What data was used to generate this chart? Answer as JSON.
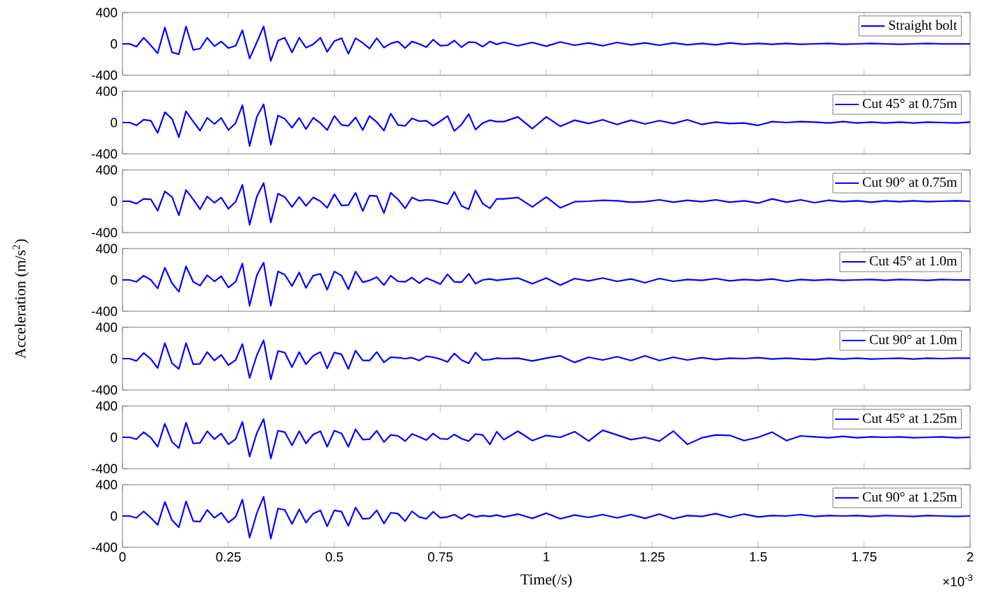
{
  "chart_data": [
    {
      "type": "line",
      "x": [
        0,
        0.017,
        0.033,
        0.05,
        0.067,
        0.083,
        0.1,
        0.117,
        0.133,
        0.15,
        0.167,
        0.183,
        0.2,
        0.217,
        0.233,
        0.25,
        0.267,
        0.283,
        0.3,
        0.317,
        0.333,
        0.35,
        0.367,
        0.383,
        0.4,
        0.417,
        0.433,
        0.45,
        0.467,
        0.483,
        0.5,
        0.517,
        0.533,
        0.55,
        0.567,
        0.583,
        0.6,
        0.617,
        0.633,
        0.65,
        0.667,
        0.683,
        0.7,
        0.717,
        0.733,
        0.75,
        0.767,
        0.783,
        0.8,
        0.817,
        0.833,
        0.85,
        0.867,
        0.883,
        0.9,
        0.933,
        0.967,
        1,
        1.033,
        1.067,
        1.1,
        1.133,
        1.167,
        1.2,
        1.233,
        1.267,
        1.3,
        1.333,
        1.367,
        1.4,
        1.433,
        1.467,
        1.5,
        1.533,
        1.567,
        1.6,
        1.633,
        1.667,
        1.7,
        1.733,
        1.767,
        1.8,
        1.833,
        1.867,
        1.9,
        1.933,
        1.967,
        2
      ],
      "xlim": [
        0,
        2
      ],
      "xticks": [
        0,
        0.25,
        0.5,
        0.75,
        1,
        1.25,
        1.5,
        1.75,
        2
      ],
      "ylim": [
        -400,
        400
      ],
      "yticks": [
        -400,
        0,
        400
      ],
      "tick_labels": "y",
      "legend": "top right",
      "marker": "none",
      "line_style": "solid",
      "series": [
        {
          "name": "Straight bolt",
          "color": "#0000ff",
          "values": [
            0,
            0,
            -36,
            78,
            -20,
            -120,
            210,
            -108,
            -132,
            222,
            -78,
            -60,
            78,
            -30,
            30,
            -54,
            -24,
            174,
            -186,
            20,
            222,
            -216,
            42,
            78,
            -108,
            78,
            -48,
            -6,
            78,
            -102,
            36,
            72,
            -126,
            72,
            12,
            -60,
            72,
            -48,
            6,
            30,
            -54,
            30,
            0,
            -42,
            54,
            -24,
            -18,
            42,
            -42,
            24,
            18,
            -36,
            30,
            -6,
            20,
            -24,
            18,
            -30,
            24,
            -18,
            12,
            -24,
            18,
            -12,
            12,
            -18,
            12,
            -12,
            6,
            -12,
            12,
            -6,
            6,
            -6,
            6,
            -6,
            0,
            6,
            -6,
            0,
            6,
            0,
            -6,
            0,
            6,
            0,
            0,
            0
          ]
        }
      ]
    },
    {
      "type": "line",
      "x": [
        0,
        0.017,
        0.033,
        0.05,
        0.067,
        0.083,
        0.1,
        0.117,
        0.133,
        0.15,
        0.167,
        0.183,
        0.2,
        0.217,
        0.233,
        0.25,
        0.267,
        0.283,
        0.3,
        0.317,
        0.333,
        0.35,
        0.367,
        0.383,
        0.4,
        0.417,
        0.433,
        0.45,
        0.467,
        0.483,
        0.5,
        0.517,
        0.533,
        0.55,
        0.567,
        0.583,
        0.6,
        0.617,
        0.633,
        0.65,
        0.667,
        0.683,
        0.7,
        0.717,
        0.733,
        0.75,
        0.767,
        0.783,
        0.8,
        0.817,
        0.833,
        0.85,
        0.867,
        0.883,
        0.9,
        0.933,
        0.967,
        1,
        1.033,
        1.067,
        1.1,
        1.133,
        1.167,
        1.2,
        1.233,
        1.267,
        1.3,
        1.333,
        1.367,
        1.4,
        1.433,
        1.467,
        1.5,
        1.533,
        1.567,
        1.6,
        1.633,
        1.667,
        1.7,
        1.733,
        1.767,
        1.8,
        1.833,
        1.867,
        1.9,
        1.933,
        1.967,
        2
      ],
      "xlim": [
        0,
        2
      ],
      "xticks": [
        0,
        0.25,
        0.5,
        0.75,
        1,
        1.25,
        1.5,
        1.75,
        2
      ],
      "ylim": [
        -400,
        400
      ],
      "yticks": [
        -400,
        0,
        400
      ],
      "tick_labels": "y",
      "legend": "top right",
      "marker": "none",
      "line_style": "solid",
      "series": [
        {
          "name": "Cut 45° at 0.75m",
          "color": "#0000ff",
          "values": [
            0,
            0,
            -36,
            36,
            24,
            -132,
            132,
            48,
            -186,
            144,
            12,
            -102,
            60,
            -18,
            60,
            -96,
            -6,
            222,
            -300,
            72,
            234,
            -282,
            90,
            48,
            -66,
            60,
            -84,
            60,
            -6,
            -96,
            84,
            -30,
            -42,
            66,
            -96,
            84,
            6,
            -102,
            114,
            -30,
            -42,
            54,
            18,
            24,
            -42,
            18,
            84,
            -108,
            -24,
            108,
            -90,
            -6,
            30,
            12,
            12,
            72,
            -78,
            72,
            -48,
            30,
            -12,
            36,
            -24,
            30,
            -18,
            24,
            -12,
            36,
            -24,
            6,
            -12,
            -6,
            -36,
            12,
            0,
            12,
            6,
            -6,
            12,
            -6,
            6,
            -6,
            6,
            -6,
            6,
            0,
            -6,
            6
          ]
        }
      ]
    },
    {
      "type": "line",
      "x": [
        0,
        0.017,
        0.033,
        0.05,
        0.067,
        0.083,
        0.1,
        0.117,
        0.133,
        0.15,
        0.167,
        0.183,
        0.2,
        0.217,
        0.233,
        0.25,
        0.267,
        0.283,
        0.3,
        0.317,
        0.333,
        0.35,
        0.367,
        0.383,
        0.4,
        0.417,
        0.433,
        0.45,
        0.467,
        0.483,
        0.5,
        0.517,
        0.533,
        0.55,
        0.567,
        0.583,
        0.6,
        0.617,
        0.633,
        0.65,
        0.667,
        0.683,
        0.7,
        0.717,
        0.733,
        0.75,
        0.767,
        0.783,
        0.8,
        0.817,
        0.833,
        0.85,
        0.867,
        0.883,
        0.9,
        0.933,
        0.967,
        1,
        1.033,
        1.067,
        1.1,
        1.133,
        1.167,
        1.2,
        1.233,
        1.267,
        1.3,
        1.333,
        1.367,
        1.4,
        1.433,
        1.467,
        1.5,
        1.533,
        1.567,
        1.6,
        1.633,
        1.667,
        1.7,
        1.733,
        1.767,
        1.8,
        1.833,
        1.867,
        1.9,
        1.933,
        1.967,
        2
      ],
      "xlim": [
        0,
        2
      ],
      "xticks": [
        0,
        0.25,
        0.5,
        0.75,
        1,
        1.25,
        1.5,
        1.75,
        2
      ],
      "ylim": [
        -400,
        400
      ],
      "yticks": [
        -400,
        0,
        400
      ],
      "tick_labels": "y",
      "legend": "top right",
      "marker": "none",
      "line_style": "solid",
      "series": [
        {
          "name": "Cut 90° at 0.75m",
          "color": "#0000ff",
          "values": [
            0,
            0,
            -30,
            30,
            24,
            -120,
            126,
            54,
            -180,
            144,
            24,
            -102,
            60,
            -18,
            48,
            -96,
            -6,
            210,
            -300,
            60,
            234,
            -270,
            96,
            54,
            -72,
            54,
            -60,
            48,
            0,
            -84,
            90,
            -54,
            -48,
            108,
            -126,
            72,
            66,
            -150,
            108,
            24,
            -90,
            48,
            6,
            18,
            12,
            -12,
            -36,
            120,
            -60,
            -102,
            138,
            -30,
            -90,
            30,
            30,
            48,
            -72,
            54,
            -84,
            -6,
            0,
            12,
            6,
            -12,
            -6,
            18,
            -12,
            12,
            -6,
            18,
            -12,
            6,
            -24,
            30,
            -12,
            18,
            -18,
            12,
            -6,
            6,
            -12,
            6,
            -6,
            6,
            -6,
            0,
            6,
            0
          ]
        }
      ]
    },
    {
      "type": "line",
      "ylabel": "Acceleration (m/s$^{2}$)",
      "x": [
        0,
        0.017,
        0.033,
        0.05,
        0.067,
        0.083,
        0.1,
        0.117,
        0.133,
        0.15,
        0.167,
        0.183,
        0.2,
        0.217,
        0.233,
        0.25,
        0.267,
        0.283,
        0.3,
        0.317,
        0.333,
        0.35,
        0.367,
        0.383,
        0.4,
        0.417,
        0.433,
        0.45,
        0.467,
        0.483,
        0.5,
        0.517,
        0.533,
        0.55,
        0.567,
        0.583,
        0.6,
        0.617,
        0.633,
        0.65,
        0.667,
        0.683,
        0.7,
        0.717,
        0.733,
        0.75,
        0.767,
        0.783,
        0.8,
        0.817,
        0.833,
        0.85,
        0.867,
        0.883,
        0.9,
        0.933,
        0.967,
        1,
        1.033,
        1.067,
        1.1,
        1.133,
        1.167,
        1.2,
        1.233,
        1.267,
        1.3,
        1.333,
        1.367,
        1.4,
        1.433,
        1.467,
        1.5,
        1.533,
        1.567,
        1.6,
        1.633,
        1.667,
        1.7,
        1.733,
        1.767,
        1.8,
        1.833,
        1.867,
        1.9,
        1.933,
        1.967,
        2
      ],
      "xlim": [
        0,
        2
      ],
      "xticks": [
        0,
        0.25,
        0.5,
        0.75,
        1,
        1.25,
        1.5,
        1.75,
        2
      ],
      "ylim": [
        -400,
        400
      ],
      "yticks": [
        -400,
        0,
        400
      ],
      "tick_labels": "y",
      "legend": "top right",
      "marker": "none",
      "line_style": "solid",
      "series": [
        {
          "name": "Cut 45° at 1.0m",
          "color": "#0000ff",
          "values": [
            0,
            0,
            -24,
            54,
            0,
            -108,
            156,
            -42,
            -150,
            174,
            -24,
            -72,
            60,
            -18,
            48,
            -96,
            -24,
            210,
            -330,
            60,
            222,
            -330,
            108,
            66,
            -78,
            96,
            -102,
            54,
            78,
            -126,
            108,
            54,
            -120,
            108,
            -30,
            -6,
            36,
            -66,
            54,
            -18,
            -24,
            30,
            -42,
            24,
            -12,
            -54,
            72,
            -24,
            -30,
            78,
            -48,
            0,
            12,
            -6,
            6,
            24,
            -48,
            24,
            -66,
            18,
            -12,
            24,
            -18,
            12,
            -36,
            18,
            -18,
            6,
            -6,
            18,
            -12,
            6,
            -6,
            12,
            -18,
            6,
            -6,
            6,
            -6,
            0,
            6,
            -6,
            6,
            0,
            -6,
            6,
            0,
            0
          ]
        }
      ]
    },
    {
      "type": "line",
      "x": [
        0,
        0.017,
        0.033,
        0.05,
        0.067,
        0.083,
        0.1,
        0.117,
        0.133,
        0.15,
        0.167,
        0.183,
        0.2,
        0.217,
        0.233,
        0.25,
        0.267,
        0.283,
        0.3,
        0.317,
        0.333,
        0.35,
        0.367,
        0.383,
        0.4,
        0.417,
        0.433,
        0.45,
        0.467,
        0.483,
        0.5,
        0.517,
        0.533,
        0.55,
        0.567,
        0.583,
        0.6,
        0.617,
        0.633,
        0.65,
        0.667,
        0.683,
        0.7,
        0.717,
        0.733,
        0.75,
        0.767,
        0.783,
        0.8,
        0.817,
        0.833,
        0.85,
        0.867,
        0.883,
        0.9,
        0.933,
        0.967,
        1,
        1.033,
        1.067,
        1.1,
        1.133,
        1.167,
        1.2,
        1.233,
        1.267,
        1.3,
        1.333,
        1.367,
        1.4,
        1.433,
        1.467,
        1.5,
        1.533,
        1.567,
        1.6,
        1.633,
        1.667,
        1.7,
        1.733,
        1.767,
        1.8,
        1.833,
        1.867,
        1.9,
        1.933,
        1.967,
        2
      ],
      "xlim": [
        0,
        2
      ],
      "xticks": [
        0,
        0.25,
        0.5,
        0.75,
        1,
        1.25,
        1.5,
        1.75,
        2
      ],
      "ylim": [
        -400,
        400
      ],
      "yticks": [
        -400,
        0,
        400
      ],
      "tick_labels": "y",
      "legend": "top right",
      "marker": "none",
      "line_style": "solid",
      "series": [
        {
          "name": "Cut 90° at 1.0m",
          "color": "#0000ff",
          "values": [
            0,
            0,
            -30,
            72,
            -6,
            -120,
            198,
            -60,
            -132,
            198,
            -72,
            -66,
            84,
            -24,
            48,
            -84,
            -18,
            186,
            -246,
            42,
            234,
            -264,
            96,
            78,
            -108,
            84,
            -72,
            36,
            84,
            -126,
            78,
            54,
            -132,
            102,
            -24,
            -24,
            84,
            -48,
            18,
            12,
            0,
            12,
            -24,
            30,
            18,
            -6,
            -42,
            66,
            -18,
            -60,
            78,
            -18,
            -12,
            6,
            0,
            6,
            -30,
            6,
            36,
            -48,
            18,
            -18,
            24,
            -24,
            36,
            -24,
            18,
            -18,
            12,
            -12,
            6,
            0,
            12,
            -6,
            6,
            -6,
            -12,
            6,
            -6,
            6,
            -6,
            0,
            6,
            -6,
            6,
            0,
            6,
            6
          ]
        }
      ]
    },
    {
      "type": "line",
      "x": [
        0,
        0.017,
        0.033,
        0.05,
        0.067,
        0.083,
        0.1,
        0.117,
        0.133,
        0.15,
        0.167,
        0.183,
        0.2,
        0.217,
        0.233,
        0.25,
        0.267,
        0.283,
        0.3,
        0.317,
        0.333,
        0.35,
        0.367,
        0.383,
        0.4,
        0.417,
        0.433,
        0.45,
        0.467,
        0.483,
        0.5,
        0.517,
        0.533,
        0.55,
        0.567,
        0.583,
        0.6,
        0.617,
        0.633,
        0.65,
        0.667,
        0.683,
        0.7,
        0.717,
        0.733,
        0.75,
        0.767,
        0.783,
        0.8,
        0.817,
        0.833,
        0.85,
        0.867,
        0.883,
        0.9,
        0.933,
        0.967,
        1,
        1.033,
        1.067,
        1.1,
        1.133,
        1.167,
        1.2,
        1.233,
        1.267,
        1.3,
        1.333,
        1.367,
        1.4,
        1.433,
        1.467,
        1.5,
        1.533,
        1.567,
        1.6,
        1.633,
        1.667,
        1.7,
        1.733,
        1.767,
        1.8,
        1.833,
        1.867,
        1.9,
        1.933,
        1.967,
        2
      ],
      "xlim": [
        0,
        2
      ],
      "xticks": [
        0,
        0.25,
        0.5,
        0.75,
        1,
        1.25,
        1.5,
        1.75,
        2
      ],
      "ylim": [
        -400,
        400
      ],
      "yticks": [
        -400,
        0,
        400
      ],
      "tick_labels": "y",
      "legend": "top right",
      "marker": "none",
      "line_style": "solid",
      "series": [
        {
          "name": "Cut 45° at 1.25m",
          "color": "#0000ff",
          "values": [
            0,
            0,
            -24,
            66,
            -6,
            -120,
            174,
            -60,
            -138,
            186,
            -78,
            -72,
            78,
            -24,
            48,
            -90,
            -24,
            198,
            -246,
            54,
            234,
            -270,
            84,
            66,
            -102,
            78,
            -78,
            36,
            78,
            -120,
            84,
            48,
            -120,
            102,
            -30,
            -24,
            84,
            -60,
            30,
            18,
            -48,
            42,
            6,
            -36,
            48,
            -18,
            -24,
            36,
            -18,
            -48,
            42,
            30,
            -90,
            72,
            -30,
            78,
            -42,
            24,
            0,
            72,
            -48,
            90,
            30,
            -30,
            0,
            -48,
            78,
            -90,
            -6,
            30,
            24,
            -42,
            0,
            66,
            -42,
            18,
            6,
            -6,
            12,
            -6,
            6,
            0,
            6,
            -6,
            0,
            6,
            -6,
            0
          ]
        }
      ]
    },
    {
      "type": "line",
      "xlabel": "Time(/s)",
      "annotations": [
        "×10$^{-3}$"
      ],
      "x": [
        0,
        0.017,
        0.033,
        0.05,
        0.067,
        0.083,
        0.1,
        0.117,
        0.133,
        0.15,
        0.167,
        0.183,
        0.2,
        0.217,
        0.233,
        0.25,
        0.267,
        0.283,
        0.3,
        0.317,
        0.333,
        0.35,
        0.367,
        0.383,
        0.4,
        0.417,
        0.433,
        0.45,
        0.467,
        0.483,
        0.5,
        0.517,
        0.533,
        0.55,
        0.567,
        0.583,
        0.6,
        0.617,
        0.633,
        0.65,
        0.667,
        0.683,
        0.7,
        0.717,
        0.733,
        0.75,
        0.767,
        0.783,
        0.8,
        0.817,
        0.833,
        0.85,
        0.867,
        0.883,
        0.9,
        0.933,
        0.967,
        1,
        1.033,
        1.067,
        1.1,
        1.133,
        1.167,
        1.2,
        1.233,
        1.267,
        1.3,
        1.333,
        1.367,
        1.4,
        1.433,
        1.467,
        1.5,
        1.533,
        1.567,
        1.6,
        1.633,
        1.667,
        1.7,
        1.733,
        1.767,
        1.8,
        1.833,
        1.867,
        1.9,
        1.933,
        1.967,
        2
      ],
      "xlim": [
        0,
        2
      ],
      "xticks": [
        0,
        0.25,
        0.5,
        0.75,
        1,
        1.25,
        1.5,
        1.75,
        2
      ],
      "ylim": [
        -400,
        400
      ],
      "yticks": [
        -400,
        0,
        400
      ],
      "legend": "top right",
      "marker": "none",
      "line_style": "solid",
      "series": [
        {
          "name": "Cut 90° at 1.25m",
          "color": "#0000ff",
          "values": [
            0,
            0,
            -24,
            60,
            -24,
            -114,
            180,
            -54,
            -144,
            186,
            -66,
            -72,
            78,
            -24,
            42,
            -84,
            -12,
            210,
            -276,
            36,
            246,
            -288,
            96,
            78,
            -102,
            84,
            -84,
            30,
            72,
            -132,
            72,
            54,
            -126,
            108,
            -36,
            -30,
            72,
            -96,
            42,
            30,
            -66,
            60,
            -12,
            -36,
            54,
            -24,
            -12,
            18,
            -36,
            24,
            -12,
            6,
            -6,
            12,
            -12,
            24,
            -30,
            36,
            -36,
            12,
            -18,
            18,
            -24,
            18,
            -30,
            24,
            -36,
            6,
            -6,
            30,
            -18,
            24,
            -12,
            6,
            0,
            18,
            -6,
            6,
            0,
            6,
            -6,
            6,
            0,
            -6,
            6,
            0,
            -6,
            0
          ]
        }
      ]
    }
  ]
}
